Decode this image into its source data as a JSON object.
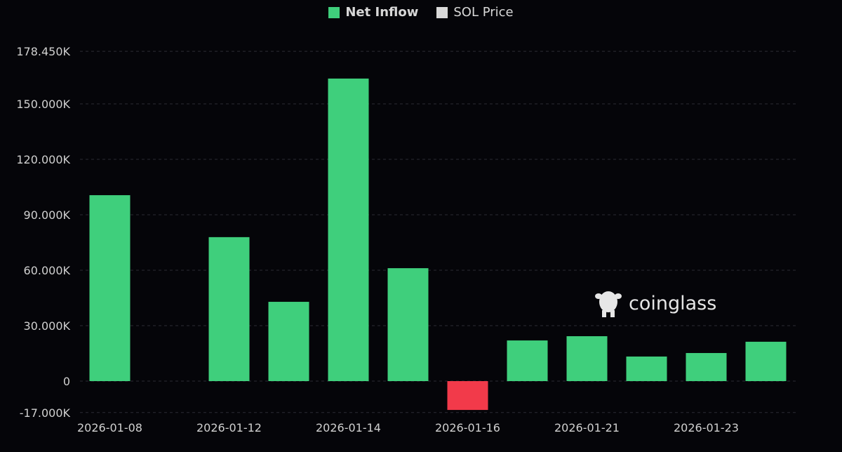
{
  "chart_data": {
    "type": "bar",
    "categories": [
      "2026-01-08",
      "",
      "2026-01-12",
      "",
      "2026-01-14",
      "",
      "2026-01-16",
      "",
      "2026-01-21",
      "",
      "2026-01-23",
      ""
    ],
    "series": [
      {
        "name": "Net Inflow",
        "values": [
          100.6,
          0,
          77.9,
          42.9,
          163.7,
          61.1,
          -15.6,
          22.0,
          24.3,
          13.3,
          15.2,
          21.3
        ]
      }
    ],
    "legend": [
      {
        "label": "Net Inflow",
        "color": "#3fcf7c"
      },
      {
        "label": "SOL Price",
        "color": "#d9d9d9"
      }
    ],
    "y_ticks": [
      {
        "value": 178.45,
        "label": "178.450K"
      },
      {
        "value": 150,
        "label": "150.000K"
      },
      {
        "value": 120,
        "label": "120.000K"
      },
      {
        "value": 90,
        "label": "90.000K"
      },
      {
        "value": 60,
        "label": "60.000K"
      },
      {
        "value": 30,
        "label": "30.000K"
      },
      {
        "value": 0,
        "label": "0"
      },
      {
        "value": -17,
        "label": "-17.000K"
      }
    ],
    "ylim": [
      -17,
      178.45
    ],
    "y_unit": "K",
    "grid": true,
    "legend_position": "top",
    "positive_color": "#3fcf7c",
    "negative_color": "#f23a4a"
  },
  "watermark": {
    "text": "coinglass"
  }
}
